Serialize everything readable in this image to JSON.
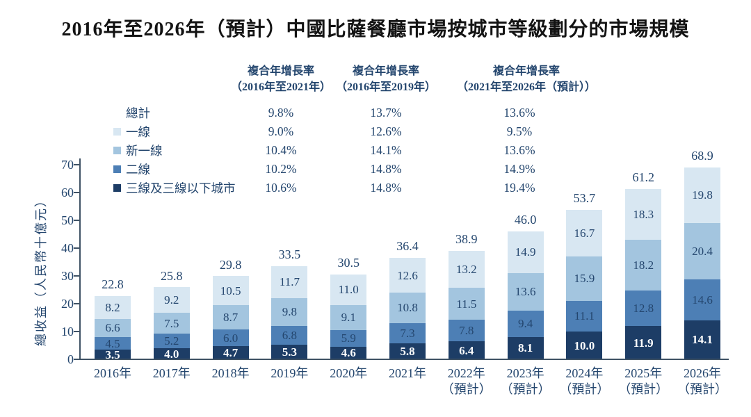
{
  "title": "2016年至2026年（預計）中國比薩餐廳市場按城市等級劃分的市場規模",
  "colors": {
    "tier1": "#d8e7f2",
    "new_tier1": "#a3c5df",
    "tier2": "#4d7fb5",
    "tier3": "#1d3d66",
    "text_navy": "#24466e",
    "axis": "#3f5265",
    "label_on_dark": "#ffffff",
    "title_text": "#131313"
  },
  "cagr_table": {
    "headers": [
      {
        "line1": "複合年增長率",
        "line2": "（2016年至2021年）"
      },
      {
        "line1": "複合年增長率",
        "line2": "（2016年至2019年）"
      },
      {
        "line1": "複合年增長率",
        "line2": "（2021年至2026年（預計））"
      }
    ],
    "rows": [
      {
        "key": "total",
        "label": "總計",
        "marker_color": null,
        "values": [
          "9.8%",
          "13.7%",
          "13.6%"
        ]
      },
      {
        "key": "tier1",
        "label": "一線",
        "marker_color": "#d8e7f2",
        "values": [
          "9.0%",
          "12.6%",
          "9.5%"
        ]
      },
      {
        "key": "new-tier1",
        "label": "新一線",
        "marker_color": "#a3c5df",
        "values": [
          "10.4%",
          "14.1%",
          "13.6%"
        ]
      },
      {
        "key": "tier2",
        "label": "二線",
        "marker_color": "#4d7fb5",
        "values": [
          "10.2%",
          "14.8%",
          "14.9%"
        ]
      },
      {
        "key": "tier3",
        "label": "三線及三線以下城市",
        "marker_color": "#1d3d66",
        "values": [
          "10.6%",
          "14.8%",
          "19.4%"
        ]
      }
    ]
  },
  "chart_data": {
    "type": "bar",
    "stacked": true,
    "title": "2016年至2026年（預計）中國比薩餐廳市場按城市等級劃分的市場規模",
    "xlabel": "",
    "ylabel": "總收益（人民幣十億元）",
    "ylim": [
      0,
      70
    ],
    "y_ticks": [
      0,
      10,
      20,
      30,
      40,
      50,
      60,
      70
    ],
    "grid": false,
    "legend_position": "upper-left overlay",
    "categories": [
      "2016年",
      "2017年",
      "2018年",
      "2019年",
      "2020年",
      "2021年",
      "2022年",
      "2023年",
      "2024年",
      "2025年",
      "2026年"
    ],
    "category_sublabels": [
      null,
      null,
      null,
      null,
      null,
      null,
      "（預計）",
      "（預計）",
      "（預計）",
      "（預計）",
      "（預計）"
    ],
    "series": [
      {
        "key": "tier3",
        "name": "三線及三線以下城市",
        "color": "#1d3d66",
        "label_color": "#ffffff",
        "label_bold": true,
        "values": [
          3.5,
          4.0,
          4.7,
          5.3,
          4.6,
          5.8,
          6.4,
          8.1,
          10.0,
          11.9,
          14.1
        ]
      },
      {
        "key": "tier2",
        "name": "二線",
        "color": "#4d7fb5",
        "label_color": "#24466e",
        "label_bold": false,
        "values": [
          4.5,
          5.2,
          6.0,
          6.8,
          5.9,
          7.3,
          7.8,
          9.4,
          11.1,
          12.8,
          14.6
        ]
      },
      {
        "key": "new-tier1",
        "name": "新一線",
        "color": "#a3c5df",
        "label_color": "#24466e",
        "label_bold": false,
        "values": [
          6.6,
          7.5,
          8.7,
          9.8,
          9.1,
          10.8,
          11.5,
          13.6,
          15.9,
          18.2,
          20.4
        ]
      },
      {
        "key": "tier1",
        "name": "一線",
        "color": "#d8e7f2",
        "label_color": "#24466e",
        "label_bold": false,
        "values": [
          8.2,
          9.2,
          10.5,
          11.7,
          11.0,
          12.6,
          13.2,
          14.9,
          16.7,
          18.3,
          19.8
        ]
      }
    ],
    "totals": [
      22.8,
      25.8,
      29.8,
      33.5,
      30.5,
      36.4,
      38.9,
      46.0,
      53.7,
      61.2,
      68.9
    ]
  }
}
